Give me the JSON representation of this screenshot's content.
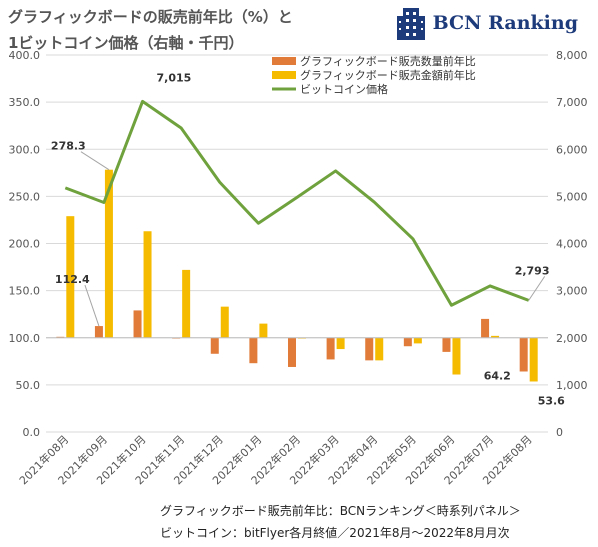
{
  "header": {
    "title_line1": "グラフィックボードの販売前年比（%）と",
    "title_line2": "1ビットコイン価格（右軸・千円）"
  },
  "brand": {
    "name": "BCN Ranking",
    "logo_color": "#1d3a7a"
  },
  "footer": {
    "source_line1": "グラフィックボード販売前年比：BCNランキング＜時系列パネル＞",
    "source_line2": "ビットコイン：bitFlyer各月終値／2021年8月～2022年8月月次"
  },
  "chart_data": {
    "type": "bar",
    "categories": [
      "2021年08月",
      "2021年09月",
      "2021年10月",
      "2021年11月",
      "2021年12月",
      "2022年01月",
      "2022年02月",
      "2022年03月",
      "2022年04月",
      "2022年05月",
      "2022年06月",
      "2022年07月",
      "2022年08月"
    ],
    "left_axis": {
      "ylim": [
        0,
        400
      ],
      "ticks": [
        "0.0",
        "50.0",
        "100.0",
        "150.0",
        "200.0",
        "250.0",
        "300.0",
        "350.0",
        "400.0"
      ],
      "baseline": 100
    },
    "right_axis": {
      "ylim": [
        0,
        8000
      ],
      "ticks": [
        "0",
        "1,000",
        "2,000",
        "3,000",
        "4,000",
        "5,000",
        "6,000",
        "7,000",
        "8,000"
      ]
    },
    "series": [
      {
        "name": "グラフィックボード販売数量前年比",
        "kind": "bar",
        "axis": "left",
        "color": "#e07b39",
        "values": [
          101,
          112.4,
          129,
          100,
          83,
          73,
          69,
          77,
          76,
          91,
          85,
          120,
          64.2
        ]
      },
      {
        "name": "グラフィックボード販売金額前年比",
        "kind": "bar",
        "axis": "left",
        "color": "#f5bb00",
        "values": [
          229,
          278.3,
          213,
          172,
          133,
          115,
          100,
          88,
          76,
          94,
          61,
          102,
          53.6
        ]
      },
      {
        "name": "ビットコイン価格",
        "kind": "line",
        "axis": "right",
        "color": "#6fa13d",
        "values": [
          5180,
          4870,
          7015,
          6450,
          5300,
          4430,
          4980,
          5540,
          4880,
          4100,
          2690,
          3100,
          2793
        ]
      }
    ],
    "data_labels": [
      {
        "text": "278.3",
        "series": 1,
        "index": 1
      },
      {
        "text": "112.4",
        "series": 0,
        "index": 1
      },
      {
        "text": "7,015",
        "series": 2,
        "index": 2
      },
      {
        "text": "2,793",
        "series": 2,
        "index": 12
      },
      {
        "text": "64.2",
        "series": 0,
        "index": 12
      },
      {
        "text": "53.6",
        "series": 1,
        "index": 12
      }
    ],
    "legend_position": "top-right",
    "grid": true
  }
}
